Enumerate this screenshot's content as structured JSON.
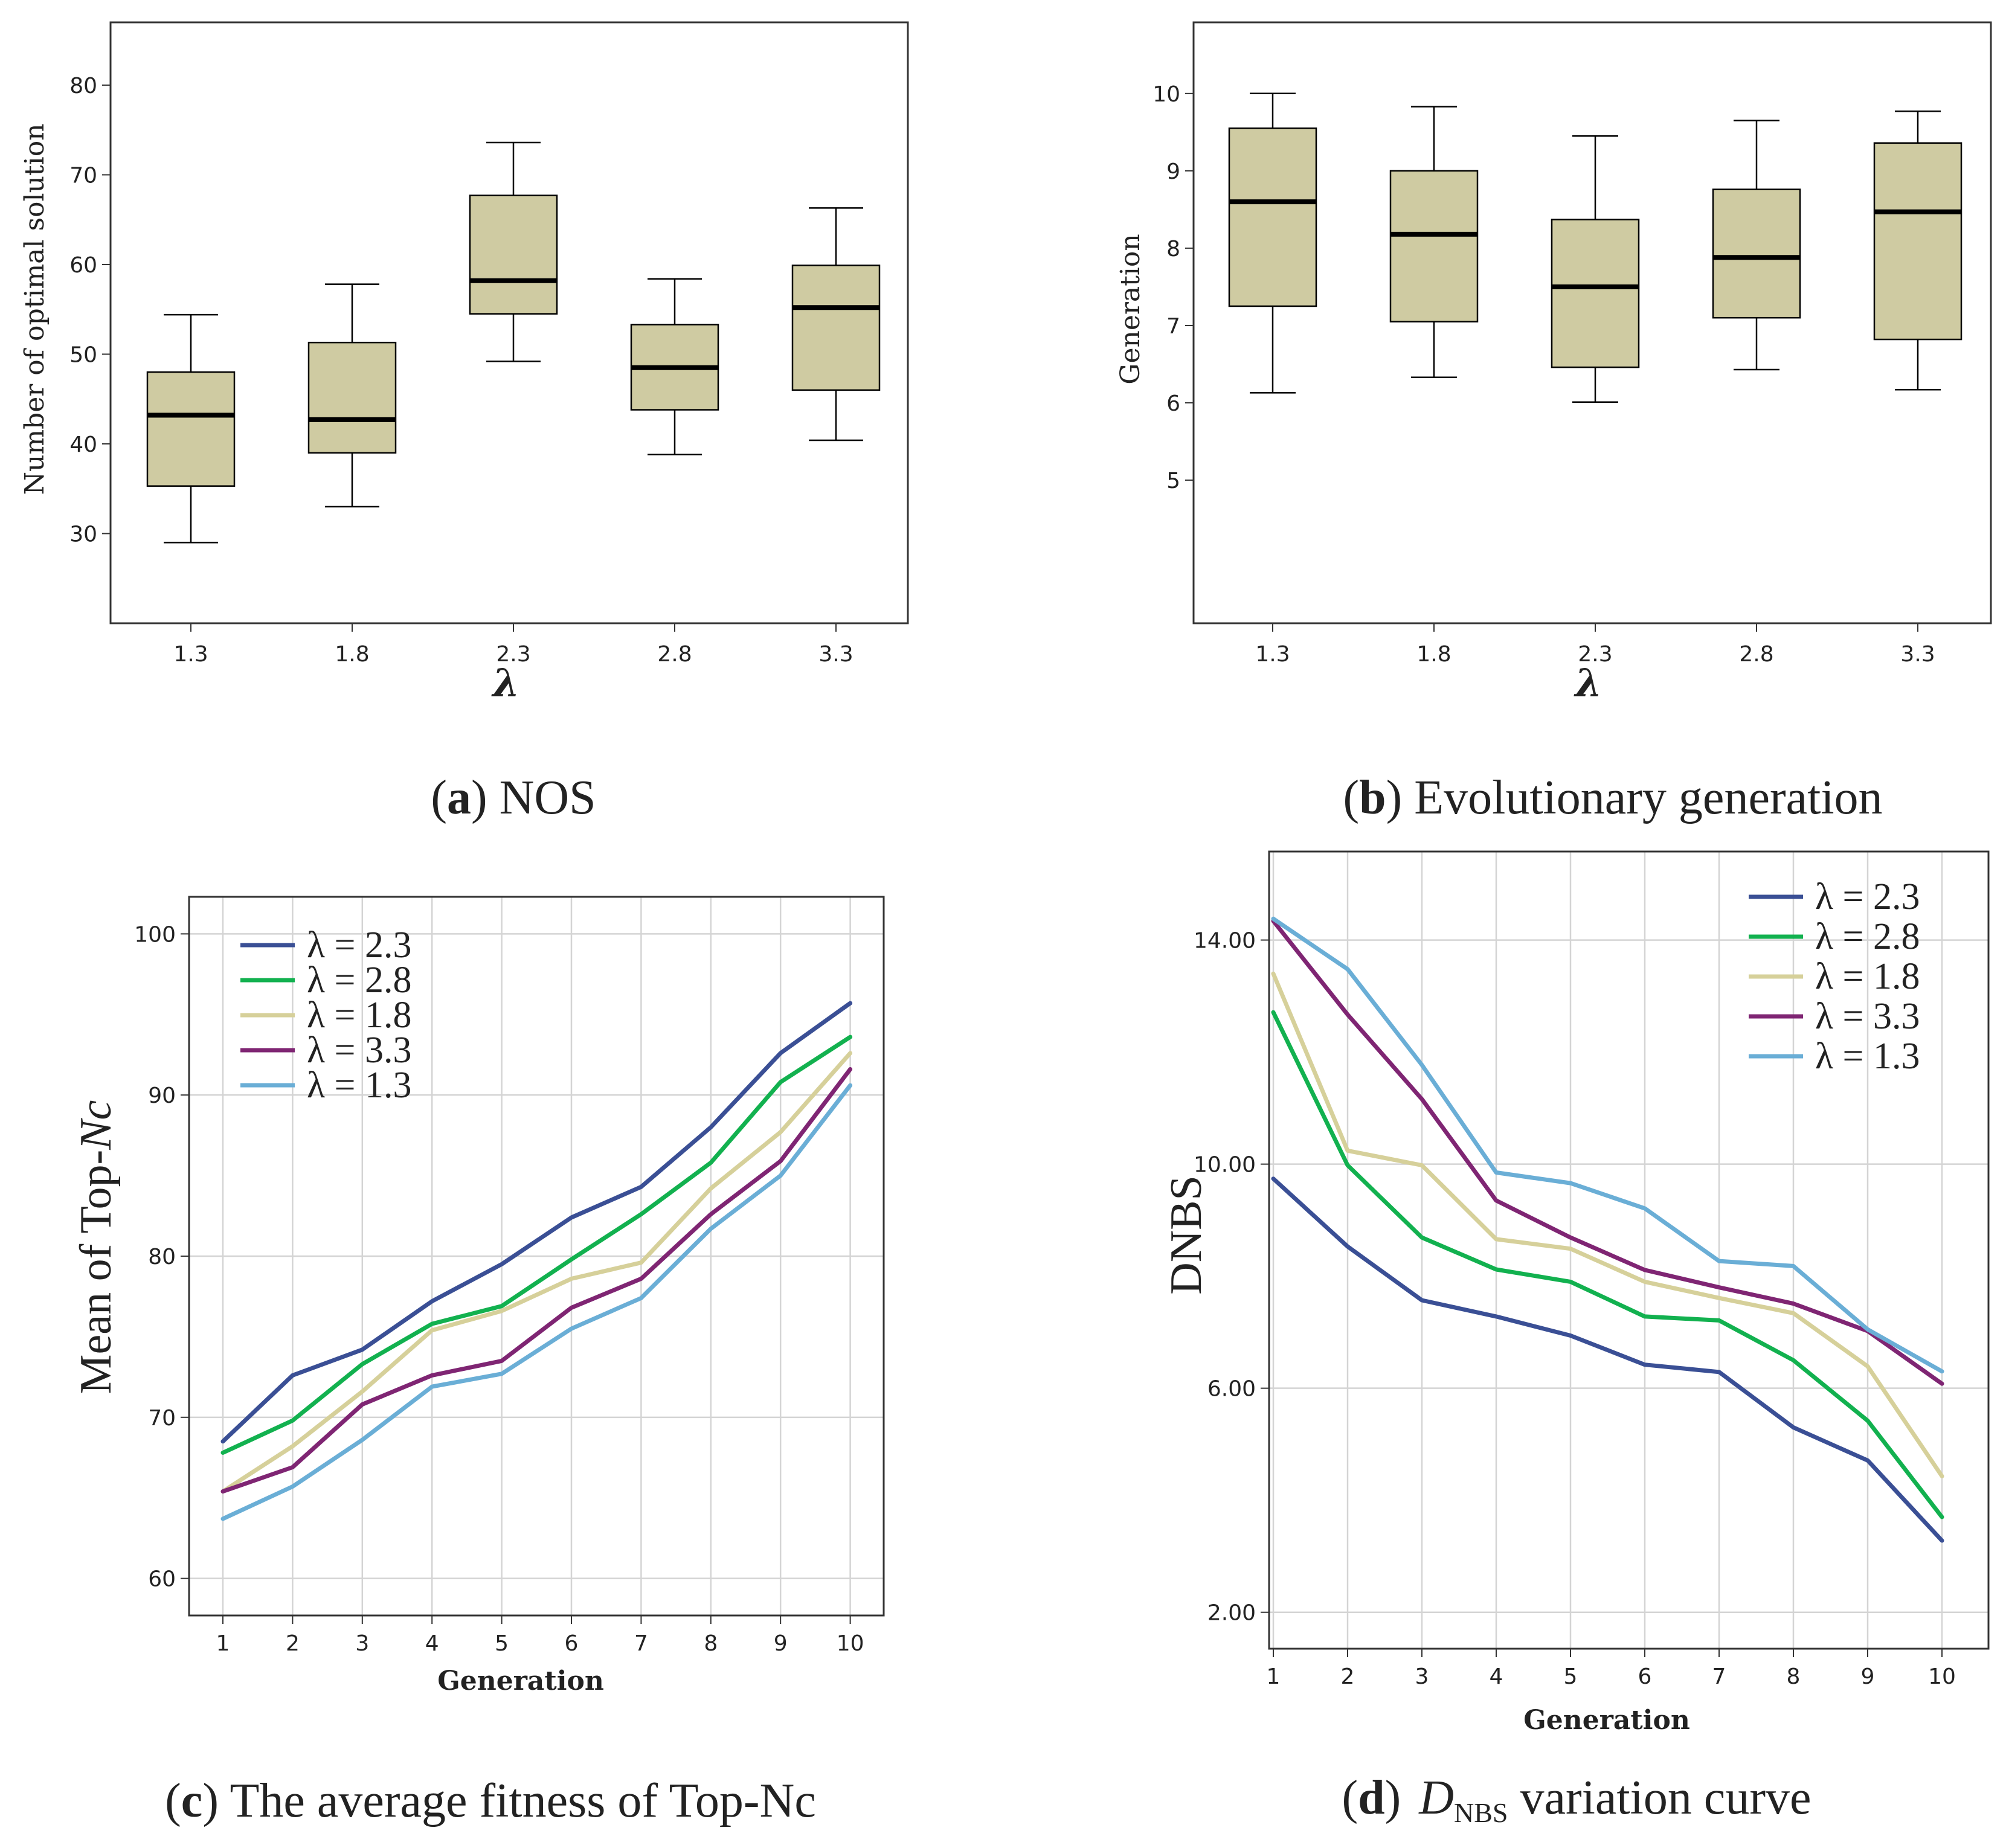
{
  "colors": {
    "box_fill": "#cfcba2",
    "grid": "#d4d4d4",
    "series": {
      "lambda_2_3": "#3a4f95",
      "lambda_2_8": "#12b14f",
      "lambda_1_8": "#d6d09a",
      "lambda_3_3": "#7f2573",
      "lambda_1_3": "#6aaed6"
    }
  },
  "chart_data": [
    {
      "type": "boxplot",
      "id": "a",
      "caption": {
        "letter": "a",
        "text": " NOS",
        "open": "(",
        "close": ")"
      },
      "ylabel": "Number of optimal solution",
      "xlabel": "λ",
      "ylim": [
        20,
        87
      ],
      "yticks": [
        30,
        40,
        50,
        60,
        70,
        80
      ],
      "categories": [
        "1.3",
        "1.8",
        "2.3",
        "2.8",
        "3.3"
      ],
      "boxes": [
        {
          "min": 29,
          "q1": 35.3,
          "median": 43.2,
          "q3": 48,
          "max": 54.4
        },
        {
          "min": 33,
          "q1": 39,
          "median": 42.7,
          "q3": 51.3,
          "max": 57.8
        },
        {
          "min": 49.2,
          "q1": 54.5,
          "median": 58.2,
          "q3": 67.7,
          "max": 73.6
        },
        {
          "min": 38.8,
          "q1": 43.8,
          "median": 48.5,
          "q3": 53.3,
          "max": 58.4
        },
        {
          "min": 40.4,
          "q1": 46,
          "median": 55.2,
          "q3": 59.9,
          "max": 66.3
        }
      ]
    },
    {
      "type": "boxplot",
      "id": "b",
      "caption": {
        "letter": "b",
        "text": " Evolutionary generation",
        "open": "(",
        "close": ")"
      },
      "ylabel": "Generation",
      "xlabel": "λ",
      "ylim": [
        3.15,
        10.92
      ],
      "yticks": [
        5,
        6,
        7,
        8,
        9,
        10
      ],
      "categories": [
        "1.3",
        "1.8",
        "2.3",
        "2.8",
        "3.3"
      ],
      "boxes": [
        {
          "min": 6.13,
          "q1": 7.25,
          "median": 8.6,
          "q3": 9.55,
          "max": 10
        },
        {
          "min": 6.33,
          "q1": 7.05,
          "median": 8.18,
          "q3": 9,
          "max": 9.83
        },
        {
          "min": 6.01,
          "q1": 6.46,
          "median": 7.5,
          "q3": 8.37,
          "max": 9.45
        },
        {
          "min": 6.43,
          "q1": 7.1,
          "median": 7.88,
          "q3": 8.76,
          "max": 9.65
        },
        {
          "min": 6.17,
          "q1": 6.82,
          "median": 8.47,
          "q3": 9.36,
          "max": 9.77
        }
      ]
    },
    {
      "type": "line",
      "id": "c",
      "caption": {
        "letter": "c",
        "text": " The average fitness of Top-Nc",
        "open": "(",
        "close": ")"
      },
      "ylabel": "Mean of Top-",
      "ylabel_italic": "Nc",
      "xlabel": "Generation",
      "ylim": [
        57.7,
        102.3
      ],
      "yticks": [
        60,
        70,
        80,
        90,
        100
      ],
      "x": [
        1,
        2,
        3,
        4,
        5,
        6,
        7,
        8,
        9,
        10
      ],
      "series": [
        {
          "key": "lambda_2_3",
          "name": "λ = 2.3",
          "values": [
            68.5,
            72.6,
            74.2,
            77.2,
            79.5,
            82.4,
            84.3,
            88.0,
            92.6,
            95.7
          ]
        },
        {
          "key": "lambda_2_8",
          "name": "λ = 2.8",
          "values": [
            67.8,
            69.8,
            73.3,
            75.8,
            76.9,
            79.8,
            82.6,
            85.8,
            90.8,
            93.6
          ]
        },
        {
          "key": "lambda_1_8",
          "name": "λ = 1.8",
          "values": [
            65.4,
            68.2,
            71.6,
            75.4,
            76.6,
            78.6,
            79.6,
            84.2,
            87.7,
            92.6
          ]
        },
        {
          "key": "lambda_3_3",
          "name": "λ = 3.3",
          "values": [
            65.4,
            66.9,
            70.8,
            72.6,
            73.5,
            76.8,
            78.6,
            82.6,
            85.9,
            91.6
          ]
        },
        {
          "key": "lambda_1_3",
          "name": "λ = 1.3",
          "values": [
            63.7,
            65.7,
            68.6,
            71.9,
            72.7,
            75.5,
            77.4,
            81.7,
            85.0,
            90.6
          ]
        }
      ]
    },
    {
      "type": "line",
      "id": "d",
      "caption": {
        "letter": "d",
        "text": " variation curve",
        "open": "(",
        "close": ")",
        "var": "D",
        "sub": "NBS"
      },
      "ylabel": "DNBS",
      "xlabel": "Generation",
      "ylim": [
        1.35,
        15.58
      ],
      "yticks": [
        "2.00",
        "6.00",
        "10.00",
        "14.00"
      ],
      "x": [
        1,
        2,
        3,
        4,
        5,
        6,
        7,
        8,
        9,
        10
      ],
      "series": [
        {
          "key": "lambda_2_3",
          "name": "λ = 2.3",
          "values": [
            9.74,
            8.53,
            7.57,
            7.28,
            6.94,
            6.42,
            6.29,
            5.3,
            4.71,
            3.28
          ]
        },
        {
          "key": "lambda_2_8",
          "name": "λ = 2.8",
          "values": [
            12.71,
            9.98,
            8.69,
            8.12,
            7.9,
            7.28,
            7.21,
            6.5,
            5.42,
            3.7
          ]
        },
        {
          "key": "lambda_1_8",
          "name": "λ = 1.8",
          "values": [
            13.4,
            10.24,
            9.98,
            8.66,
            8.49,
            7.9,
            7.61,
            7.34,
            6.39,
            4.43
          ]
        },
        {
          "key": "lambda_3_3",
          "name": "λ = 3.3",
          "values": [
            14.34,
            12.67,
            11.16,
            9.35,
            8.69,
            8.11,
            7.8,
            7.51,
            7.02,
            6.08
          ]
        },
        {
          "key": "lambda_1_3",
          "name": "λ = 1.3",
          "values": [
            14.38,
            13.48,
            11.77,
            9.85,
            9.66,
            9.21,
            8.27,
            8.18,
            7.05,
            6.3
          ]
        }
      ]
    }
  ]
}
